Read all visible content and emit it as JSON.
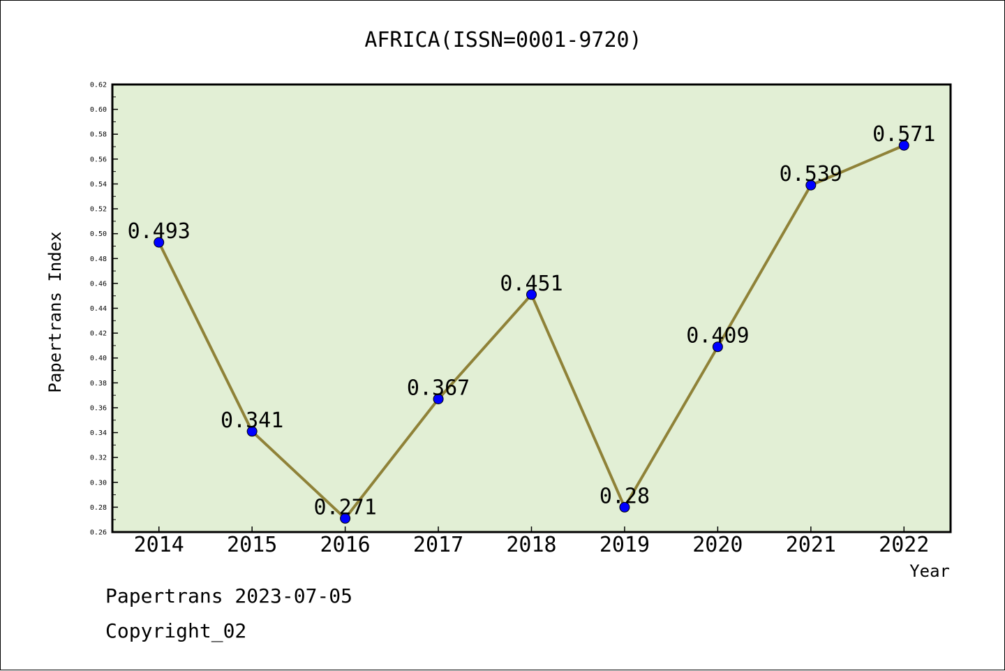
{
  "chart_data": {
    "type": "line",
    "title": "AFRICA(ISSN=0001-9720)",
    "xlabel": "Year",
    "ylabel": "Papertrans Index",
    "categories": [
      "2014",
      "2015",
      "2016",
      "2017",
      "2018",
      "2019",
      "2020",
      "2021",
      "2022"
    ],
    "series": [
      {
        "values": [
          0.493,
          0.341,
          0.271,
          0.367,
          0.451,
          0.28,
          0.409,
          0.539,
          0.571
        ],
        "labels": [
          "0.493",
          "0.341",
          "0.271",
          "0.367",
          "0.451",
          "0.28",
          "0.409",
          "0.539",
          "0.571"
        ]
      }
    ],
    "ylim": [
      0.26,
      0.62
    ],
    "ytick_step": 0.02,
    "grid": false,
    "colors": {
      "plot_background": "#e2efd5",
      "line": "#8f8238",
      "marker": "#0000ff"
    }
  },
  "footer": {
    "stamp": "Papertrans 2023-07-05",
    "copyright": "Copyright_02"
  }
}
